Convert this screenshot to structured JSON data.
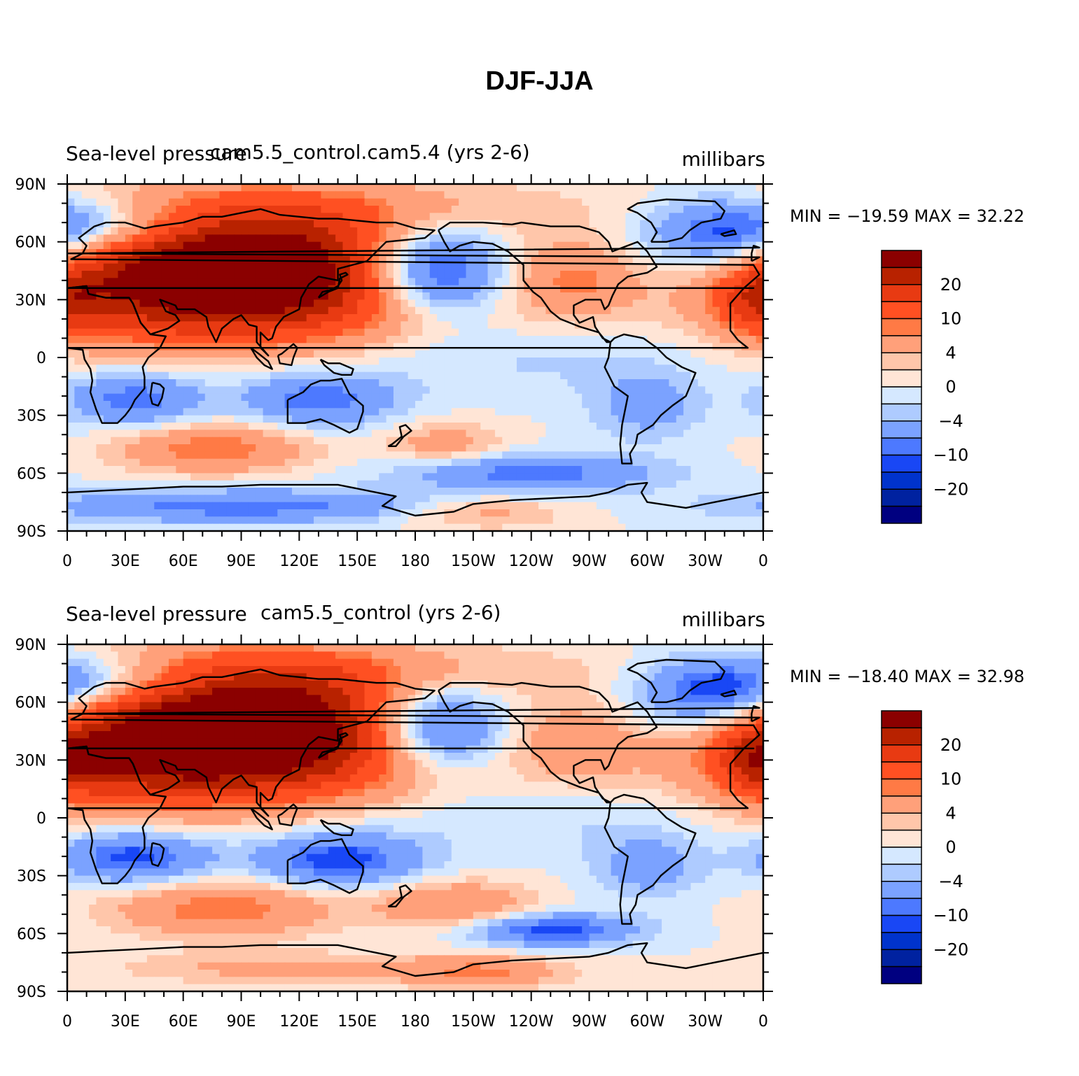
{
  "title": "DJF-JJA",
  "colors": {
    "levels": [
      "#000080",
      "#0022a0",
      "#0033cc",
      "#1947f5",
      "#4d79ff",
      "#7ba2ff",
      "#aecbff",
      "#d5e8ff",
      "#ffe5d6",
      "#ffc6aa",
      "#ffa07a",
      "#ff7a45",
      "#ff5022",
      "#e83a12",
      "#b82200",
      "#8b0000"
    ],
    "coast": "#000000"
  },
  "chart_data": [
    {
      "type": "heatmap",
      "title": "cam5.5_control.cam5.4 (yrs 2-6)",
      "left_string": "Sea-level pressure",
      "right_string": "millibars",
      "min_max": "MIN = -19.59  MAX =   32.22",
      "xticks": [
        "0",
        "30E",
        "60E",
        "90E",
        "120E",
        "150E",
        "180",
        "150W",
        "120W",
        "90W",
        "60W",
        "30W",
        "0"
      ],
      "yticks": [
        "90N",
        "60N",
        "30N",
        "0",
        "30S",
        "60S",
        "90S"
      ],
      "xlim": [
        0,
        360
      ],
      "ylim": [
        -90,
        90
      ],
      "colorbar": {
        "labels": [
          "20",
          "10",
          "4",
          "0",
          "-4",
          "-10",
          "-20"
        ]
      },
      "anomalies": [
        {
          "lon": 100,
          "lat": 48,
          "dx": 55,
          "dy": 22,
          "v": 24
        },
        {
          "lon": 80,
          "lat": 38,
          "dx": 80,
          "dy": 26,
          "v": 10
        },
        {
          "lon": 30,
          "lat": 40,
          "dx": 40,
          "dy": 22,
          "v": 8
        },
        {
          "lon": 110,
          "lat": 25,
          "dx": 60,
          "dy": 18,
          "v": 4
        },
        {
          "lon": 150,
          "lat": 78,
          "dx": 90,
          "dy": 10,
          "v": 4
        },
        {
          "lon": 188,
          "lat": 45,
          "dx": 26,
          "dy": 16,
          "v": -20
        },
        {
          "lon": 340,
          "lat": 62,
          "dx": 30,
          "dy": 14,
          "v": -12
        },
        {
          "lon": 20,
          "lat": 68,
          "dx": 35,
          "dy": 10,
          "v": -10
        },
        {
          "lon": 358,
          "lat": 30,
          "dx": 15,
          "dy": 12,
          "v": 10
        },
        {
          "lon": 262,
          "lat": 40,
          "dx": 22,
          "dy": 15,
          "v": 8
        },
        {
          "lon": 35,
          "lat": -22,
          "dx": 25,
          "dy": 10,
          "v": -10
        },
        {
          "lon": 130,
          "lat": -22,
          "dx": 28,
          "dy": 10,
          "v": -10
        },
        {
          "lon": 300,
          "lat": -25,
          "dx": 20,
          "dy": 12,
          "v": -6
        },
        {
          "lon": 75,
          "lat": -47,
          "dx": 35,
          "dy": 9,
          "v": 10
        },
        {
          "lon": 195,
          "lat": -45,
          "dx": 22,
          "dy": 8,
          "v": 6
        },
        {
          "lon": 240,
          "lat": -60,
          "dx": 45,
          "dy": 7,
          "v": -10
        },
        {
          "lon": 90,
          "lat": -77,
          "dx": 70,
          "dy": 6,
          "v": -10
        },
        {
          "lon": 215,
          "lat": -80,
          "dx": 30,
          "dy": 6,
          "v": 6
        },
        {
          "lon": 180,
          "lat": 0,
          "dx": 140,
          "dy": 14,
          "v": -3
        }
      ]
    },
    {
      "type": "heatmap",
      "title": "cam5.5_control (yrs 2-6)",
      "left_string": "Sea-level pressure",
      "right_string": "millibars",
      "min_max": "MIN = -18.40  MAX =   32.98",
      "xticks": [
        "0",
        "30E",
        "60E",
        "90E",
        "120E",
        "150E",
        "180",
        "150W",
        "120W",
        "90W",
        "60W",
        "30W",
        "0"
      ],
      "yticks": [
        "90N",
        "60N",
        "30N",
        "0",
        "30S",
        "60S",
        "90S"
      ],
      "xlim": [
        0,
        360
      ],
      "ylim": [
        -90,
        90
      ],
      "colorbar": {
        "labels": [
          "20",
          "10",
          "4",
          "0",
          "-4",
          "-10",
          "-20"
        ]
      },
      "anomalies": [
        {
          "lon": 100,
          "lat": 50,
          "dx": 55,
          "dy": 22,
          "v": 24
        },
        {
          "lon": 75,
          "lat": 38,
          "dx": 85,
          "dy": 26,
          "v": 12
        },
        {
          "lon": 30,
          "lat": 35,
          "dx": 40,
          "dy": 22,
          "v": 10
        },
        {
          "lon": 110,
          "lat": 25,
          "dx": 60,
          "dy": 18,
          "v": 4
        },
        {
          "lon": 160,
          "lat": 76,
          "dx": 90,
          "dy": 10,
          "v": 4
        },
        {
          "lon": 190,
          "lat": 47,
          "dx": 26,
          "dy": 16,
          "v": -18
        },
        {
          "lon": 335,
          "lat": 63,
          "dx": 30,
          "dy": 14,
          "v": -14
        },
        {
          "lon": 20,
          "lat": 70,
          "dx": 35,
          "dy": 10,
          "v": -10
        },
        {
          "lon": 358,
          "lat": 30,
          "dx": 15,
          "dy": 12,
          "v": 10
        },
        {
          "lon": 262,
          "lat": 38,
          "dx": 22,
          "dy": 15,
          "v": 6
        },
        {
          "lon": 35,
          "lat": -20,
          "dx": 28,
          "dy": 10,
          "v": -12
        },
        {
          "lon": 140,
          "lat": -22,
          "dx": 30,
          "dy": 10,
          "v": -12
        },
        {
          "lon": 300,
          "lat": -25,
          "dx": 20,
          "dy": 12,
          "v": -6
        },
        {
          "lon": 80,
          "lat": -47,
          "dx": 40,
          "dy": 10,
          "v": 10
        },
        {
          "lon": 200,
          "lat": -45,
          "dx": 30,
          "dy": 9,
          "v": 8
        },
        {
          "lon": 250,
          "lat": -58,
          "dx": 30,
          "dy": 6,
          "v": -12
        },
        {
          "lon": 110,
          "lat": -78,
          "dx": 60,
          "dy": 6,
          "v": 5
        },
        {
          "lon": 215,
          "lat": -80,
          "dx": 30,
          "dy": 6,
          "v": 8
        },
        {
          "lon": 180,
          "lat": 2,
          "dx": 140,
          "dy": 14,
          "v": -3
        }
      ]
    }
  ]
}
